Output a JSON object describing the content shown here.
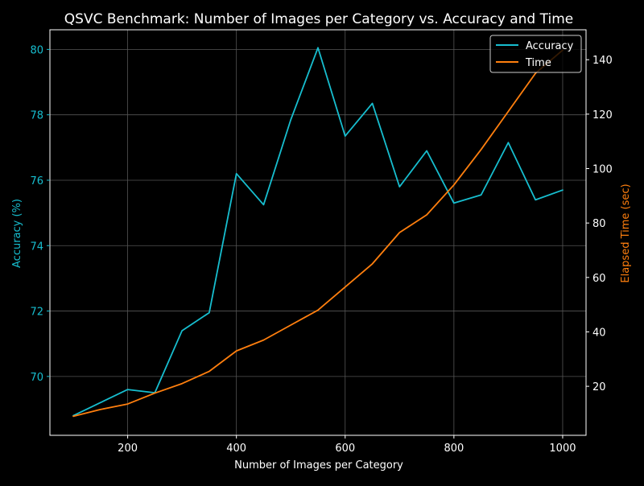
{
  "colors": {
    "background": "#000000",
    "foreground": "#ffffff",
    "grid": "#555555",
    "accuracy": "#17becf",
    "time": "#ff7f0e"
  },
  "chart_data": {
    "type": "line",
    "title": "QSVC Benchmark: Number of Images per Category vs. Accuracy and Time",
    "xlabel": "Number of Images per Category",
    "ylabel_left": "Accuracy (%)",
    "ylabel_right": "Elapsed Time (sec)",
    "x": [
      100,
      150,
      200,
      250,
      300,
      350,
      400,
      450,
      500,
      550,
      600,
      650,
      700,
      750,
      800,
      850,
      900,
      950,
      1000
    ],
    "xlim": [
      57,
      1043
    ],
    "xticks": [
      200,
      400,
      600,
      800,
      1000
    ],
    "ylim_left": [
      68.2,
      80.6
    ],
    "yticks_left": [
      70,
      72,
      74,
      76,
      78,
      80
    ],
    "ylim_right": [
      2,
      151
    ],
    "yticks_right": [
      20,
      40,
      60,
      80,
      100,
      120,
      140
    ],
    "grid": true,
    "legend_position": "top-right",
    "series": [
      {
        "name": "Accuracy",
        "axis": "left",
        "color": "#17becf",
        "values": [
          68.8,
          69.2,
          69.6,
          69.5,
          71.4,
          71.95,
          76.2,
          75.25,
          77.85,
          80.05,
          77.35,
          78.35,
          75.8,
          76.9,
          75.3,
          75.55,
          77.15,
          75.4,
          75.7
        ]
      },
      {
        "name": "Time",
        "axis": "right",
        "color": "#ff7f0e",
        "values": [
          9,
          11.5,
          13.5,
          17.5,
          21,
          25.5,
          33,
          37,
          42.5,
          48,
          56.5,
          65,
          76.5,
          83,
          94,
          107,
          121,
          135,
          143.5
        ]
      }
    ]
  }
}
